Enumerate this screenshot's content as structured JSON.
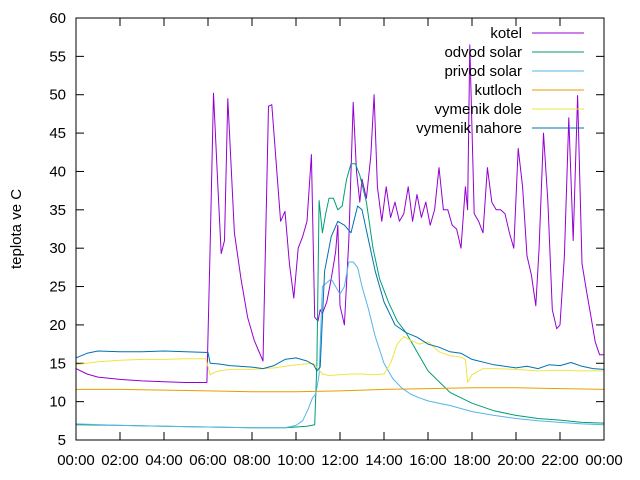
{
  "chart_data": {
    "type": "line",
    "title": "",
    "xlabel": "",
    "ylabel": "teplota ve C",
    "xlim": [
      0,
      24
    ],
    "ylim": [
      5,
      60
    ],
    "x_ticks": [
      0,
      2,
      4,
      6,
      8,
      10,
      12,
      14,
      16,
      18,
      20,
      22,
      24
    ],
    "x_tick_labels": [
      "00:00",
      "02:00",
      "04:00",
      "06:00",
      "08:00",
      "10:00",
      "12:00",
      "14:00",
      "16:00",
      "18:00",
      "20:00",
      "22:00",
      "00:00"
    ],
    "y_ticks": [
      5,
      10,
      15,
      20,
      25,
      30,
      35,
      40,
      45,
      50,
      55,
      60
    ],
    "grid": false,
    "legend_position": "top-right",
    "series": [
      {
        "name": "kotel",
        "color": "#9400d3",
        "x": [
          0,
          0.5,
          1,
          2,
          3,
          4,
          5,
          5.95,
          6.1,
          6.25,
          6.45,
          6.6,
          6.75,
          6.9,
          7.2,
          7.5,
          7.8,
          8.1,
          8.5,
          8.75,
          8.9,
          9.05,
          9.3,
          9.5,
          9.7,
          9.9,
          10.1,
          10.3,
          10.5,
          10.7,
          10.85,
          11,
          11.1,
          11.2,
          11.4,
          11.6,
          11.8,
          11.9,
          12.0,
          12.2,
          12.4,
          12.6,
          12.75,
          12.9,
          13.0,
          13.2,
          13.4,
          13.55,
          13.7,
          13.9,
          14.1,
          14.3,
          14.5,
          14.7,
          14.9,
          15.1,
          15.3,
          15.5,
          15.7,
          15.9,
          16.1,
          16.3,
          16.5,
          16.7,
          16.9,
          17.1,
          17.3,
          17.5,
          17.7,
          17.8,
          17.9,
          18.1,
          18.3,
          18.5,
          18.7,
          18.9,
          19.1,
          19.3,
          19.5,
          19.7,
          19.9,
          20.1,
          20.3,
          20.5,
          20.7,
          20.9,
          21.05,
          21.25,
          21.45,
          21.65,
          21.85,
          22.0,
          22.2,
          22.4,
          22.6,
          22.8,
          23.0,
          23.2,
          23.4,
          23.6,
          23.8,
          24
        ],
        "y": [
          14.3,
          13.6,
          13.2,
          12.9,
          12.7,
          12.6,
          12.5,
          12.5,
          30.5,
          50.2,
          38,
          29.3,
          31,
          49.5,
          32,
          26,
          21,
          18,
          15.3,
          48.5,
          48.7,
          43,
          33.5,
          34.8,
          28,
          23.5,
          30,
          31.5,
          33.5,
          42.2,
          21,
          20.5,
          22,
          21.5,
          23,
          26,
          29.5,
          33,
          22.5,
          20,
          31,
          49,
          40,
          36,
          39,
          36.5,
          42,
          50,
          38,
          33.5,
          38,
          34,
          36,
          33.5,
          34.5,
          38,
          33.5,
          37,
          34,
          36,
          33,
          35,
          40.5,
          35,
          35,
          33,
          32.5,
          30,
          38,
          35,
          56.5,
          34.5,
          33.5,
          32,
          40.5,
          36,
          35,
          35,
          34.5,
          32,
          30,
          43,
          38,
          29,
          26.5,
          22.5,
          30,
          45,
          36,
          22,
          19.5,
          20,
          29,
          47,
          31,
          49.9,
          28,
          24.5,
          21.2,
          17.8,
          16.1,
          16.1
        ]
      },
      {
        "name": "odvod solar",
        "color": "#009e73",
        "x": [
          0,
          2,
          4,
          6,
          8,
          9.5,
          10.5,
          10.85,
          10.95,
          11.05,
          11.2,
          11.35,
          11.5,
          11.7,
          11.9,
          12.1,
          12.3,
          12.5,
          12.7,
          12.9,
          13.2,
          13.5,
          13.8,
          14.2,
          14.6,
          15.0,
          15.5,
          16,
          17,
          18,
          19,
          20,
          21,
          22,
          23,
          24
        ],
        "y": [
          7.0,
          6.9,
          6.8,
          6.7,
          6.6,
          6.6,
          6.8,
          7.0,
          15,
          36.2,
          32,
          34.5,
          36.5,
          36.5,
          35,
          35.5,
          39,
          41,
          41,
          39.5,
          36,
          30,
          26,
          23,
          20.5,
          19,
          16.5,
          14,
          11.2,
          9.8,
          8.8,
          8.2,
          7.8,
          7.6,
          7.3,
          7.2
        ]
      },
      {
        "name": "privod solar",
        "color": "#56b4e9",
        "x": [
          0,
          2,
          4,
          6,
          8,
          9.5,
          10.0,
          10.3,
          10.55,
          10.75,
          10.9,
          11.05,
          11.2,
          11.4,
          11.6,
          11.8,
          12.0,
          12.2,
          12.4,
          12.6,
          12.8,
          13.0,
          13.3,
          13.6,
          14.0,
          14.4,
          14.8,
          15.2,
          15.6,
          16,
          16.5,
          17,
          18,
          19,
          20,
          21,
          22,
          23,
          24
        ],
        "y": [
          7.1,
          6.9,
          6.8,
          6.7,
          6.6,
          6.6,
          6.9,
          7.5,
          9.0,
          10.5,
          11.0,
          13.5,
          25,
          25.5,
          26,
          25,
          24,
          25,
          28.2,
          28.2,
          27.5,
          25,
          22,
          18.5,
          15,
          13,
          11.8,
          11,
          10.5,
          10.1,
          9.8,
          9.5,
          8.7,
          8.2,
          7.8,
          7.5,
          7.3,
          7.1,
          7.0
        ]
      },
      {
        "name": "kutloch",
        "color": "#e69f00",
        "x": [
          0,
          2,
          4,
          6,
          8,
          10,
          12,
          14,
          16,
          18,
          20,
          22,
          24
        ],
        "y": [
          11.6,
          11.6,
          11.5,
          11.4,
          11.3,
          11.3,
          11.4,
          11.6,
          11.7,
          11.8,
          11.8,
          11.7,
          11.6
        ],
        "smooth": true
      },
      {
        "name": "vymenik dole",
        "color": "#f0e442",
        "x": [
          0,
          1,
          2,
          3,
          4,
          5,
          5.9,
          6.1,
          6.3,
          6.5,
          7,
          8,
          9,
          10,
          10.8,
          11.2,
          11.5,
          12,
          12.5,
          13,
          13.5,
          14,
          14.3,
          14.6,
          14.9,
          15.2,
          15.6,
          16,
          16.5,
          17,
          17.5,
          17.7,
          17.8,
          18,
          18.5,
          19,
          20,
          21,
          22,
          23,
          24
        ],
        "y": [
          14.8,
          15.2,
          15.4,
          15.5,
          15.5,
          15.6,
          15.6,
          13.5,
          13.8,
          14.0,
          14.2,
          14.2,
          14.4,
          14.8,
          15.0,
          13.6,
          13.4,
          13.5,
          13.6,
          13.6,
          13.5,
          13.6,
          15,
          17.5,
          18.5,
          18,
          17.5,
          17.8,
          16.5,
          16.0,
          15.8,
          15.5,
          12.5,
          13.5,
          14.3,
          14.3,
          14.2,
          14.0,
          14.1,
          14.0,
          14.0
        ]
      },
      {
        "name": "vymenik nahore",
        "color": "#0072b2",
        "x": [
          0,
          0.5,
          1,
          2,
          3,
          4,
          5,
          6,
          6.1,
          6.5,
          7,
          8,
          8.5,
          9,
          9.5,
          10,
          10.5,
          10.8,
          10.95,
          11.1,
          11.3,
          11.6,
          11.9,
          12.2,
          12.5,
          12.8,
          13.0,
          13.3,
          13.6,
          14,
          14.5,
          15,
          15.5,
          16,
          16.5,
          17,
          17.5,
          18,
          19,
          20,
          20.5,
          21,
          21.5,
          22,
          22.5,
          23,
          23.5,
          24
        ],
        "y": [
          15.7,
          16.3,
          16.6,
          16.5,
          16.5,
          16.6,
          16.5,
          16.4,
          15.0,
          14.9,
          14.7,
          14.5,
          14.3,
          14.7,
          15.5,
          15.7,
          15.3,
          14.8,
          14.0,
          14.5,
          27,
          31.5,
          33.5,
          33,
          32,
          35.5,
          35,
          31,
          27,
          23,
          20,
          19,
          18.4,
          17.5,
          17.1,
          16.5,
          16.3,
          15.5,
          14.8,
          14.4,
          14.6,
          14.3,
          14.8,
          14.7,
          15.1,
          14.6,
          14.3,
          14.2
        ]
      }
    ]
  }
}
